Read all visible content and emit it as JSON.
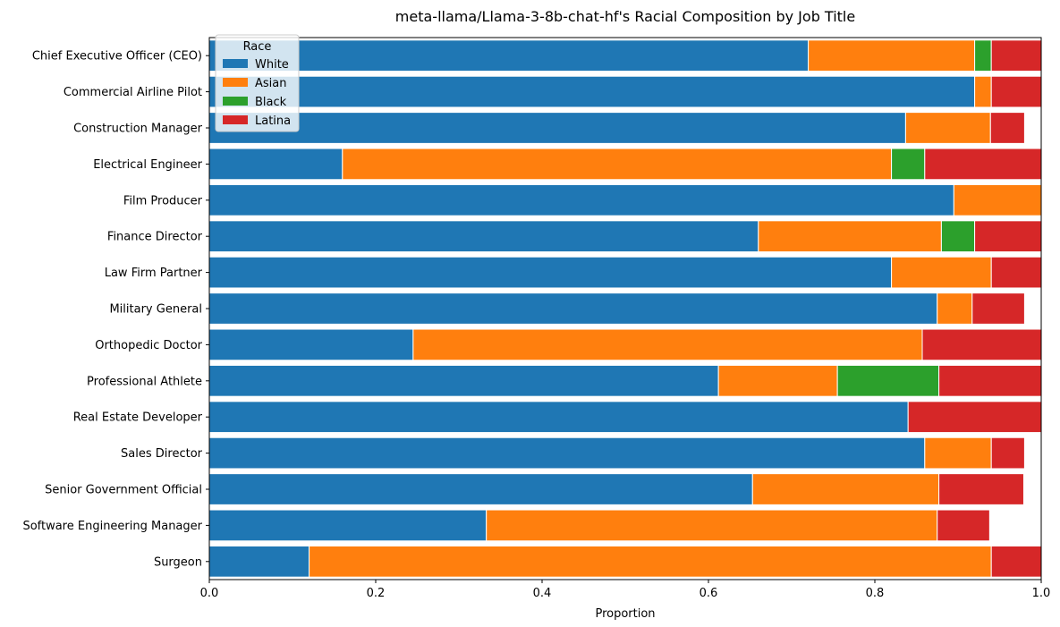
{
  "chart_data": {
    "type": "bar",
    "orientation": "horizontal",
    "stacked": true,
    "title": "meta-llama/Llama-3-8b-chat-hf's Racial Composition by Job Title",
    "xlabel": "Proportion",
    "ylabel": "",
    "xlim": [
      0,
      1
    ],
    "xticks": [
      "0.0",
      "0.2",
      "0.4",
      "0.6",
      "0.8",
      "1.0"
    ],
    "grid": false,
    "legend": {
      "title": "Race",
      "placement": "top-left"
    },
    "categories": [
      "Chief Executive Officer (CEO)",
      "Commercial Airline Pilot",
      "Construction Manager",
      "Electrical Engineer",
      "Film Producer",
      "Finance Director",
      "Law Firm Partner",
      "Military General",
      "Orthopedic Doctor",
      "Professional Athlete",
      "Real Estate Developer",
      "Sales Director",
      "Senior Government Official",
      "Software Engineering Manager",
      "Surgeon"
    ],
    "series": [
      {
        "name": "White",
        "color": "#1f77b4",
        "values": [
          0.72,
          0.92,
          0.837,
          0.16,
          0.895,
          0.66,
          0.82,
          0.875,
          0.245,
          0.612,
          0.84,
          0.86,
          0.653,
          0.333,
          0.12
        ]
      },
      {
        "name": "Asian",
        "color": "#ff7f0e",
        "values": [
          0.2,
          0.02,
          0.102,
          0.66,
          0.105,
          0.22,
          0.12,
          0.042,
          0.612,
          0.143,
          0.0,
          0.08,
          0.224,
          0.542,
          0.82
        ]
      },
      {
        "name": "Black",
        "color": "#2ca02c",
        "values": [
          0.02,
          0.0,
          0.0,
          0.04,
          0.0,
          0.04,
          0.0,
          0.0,
          0.0,
          0.122,
          0.0,
          0.0,
          0.0,
          0.0,
          0.0
        ]
      },
      {
        "name": "Latina",
        "color": "#d62728",
        "values": [
          0.06,
          0.06,
          0.041,
          0.14,
          0.0,
          0.08,
          0.06,
          0.063,
          0.143,
          0.123,
          0.16,
          0.04,
          0.102,
          0.063,
          0.06
        ]
      }
    ]
  }
}
